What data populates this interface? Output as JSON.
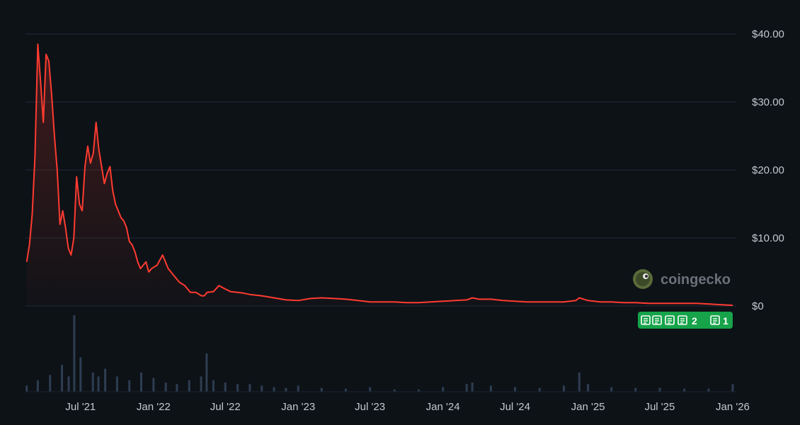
{
  "chart_data": {
    "type": "area",
    "title": "",
    "xlabel": "",
    "ylabel": "",
    "ylim": [
      0,
      40
    ],
    "y_ticks": [
      "$40.00",
      "$30.00",
      "$20.00",
      "$10.00",
      "$0"
    ],
    "y_tick_values": [
      40,
      30,
      20,
      10,
      0
    ],
    "x_ticks": [
      "Jul '21",
      "Jan '22",
      "Jul '22",
      "Jan '23",
      "Jul '23",
      "Jan '24",
      "Jul '24",
      "Jan '25",
      "Jul '25",
      "Jan '26"
    ],
    "x_tick_dates": [
      "2021-07-01",
      "2022-01-01",
      "2022-07-01",
      "2023-01-01",
      "2023-07-01",
      "2024-01-01",
      "2024-07-01",
      "2025-01-01",
      "2025-07-01",
      "2026-01-01"
    ],
    "grid": true,
    "line_color": "#ff3b30",
    "series": [
      {
        "x": [
          "2021-02-15",
          "2021-02-22",
          "2021-03-01",
          "2021-03-08",
          "2021-03-15",
          "2021-03-22",
          "2021-03-29",
          "2021-04-05",
          "2021-04-12",
          "2021-04-19",
          "2021-04-26",
          "2021-05-03",
          "2021-05-10",
          "2021-05-17",
          "2021-05-24",
          "2021-05-31",
          "2021-06-07",
          "2021-06-14",
          "2021-06-21",
          "2021-06-28",
          "2021-07-05",
          "2021-07-12",
          "2021-07-19",
          "2021-07-26",
          "2021-08-02",
          "2021-08-09",
          "2021-08-16",
          "2021-08-23",
          "2021-08-30",
          "2021-09-06",
          "2021-09-13",
          "2021-09-20",
          "2021-09-27",
          "2021-10-04",
          "2021-10-11",
          "2021-10-18",
          "2021-10-25",
          "2021-11-01",
          "2021-11-08",
          "2021-11-15",
          "2021-11-22",
          "2021-11-29",
          "2021-12-06",
          "2021-12-13",
          "2021-12-20",
          "2021-12-27",
          "2022-01-10",
          "2022-01-24",
          "2022-02-07",
          "2022-02-21",
          "2022-03-07",
          "2022-03-21",
          "2022-04-04",
          "2022-04-18",
          "2022-05-02",
          "2022-05-09",
          "2022-05-16",
          "2022-06-01",
          "2022-06-15",
          "2022-07-01",
          "2022-07-15",
          "2022-08-01",
          "2022-08-15",
          "2022-09-01",
          "2022-10-01",
          "2022-11-01",
          "2022-12-01",
          "2023-01-01",
          "2023-02-01",
          "2023-03-01",
          "2023-04-01",
          "2023-05-01",
          "2023-06-01",
          "2023-07-01",
          "2023-08-01",
          "2023-09-01",
          "2023-10-01",
          "2023-11-01",
          "2023-12-01",
          "2024-01-01",
          "2024-02-01",
          "2024-03-01",
          "2024-03-15",
          "2024-04-01",
          "2024-05-01",
          "2024-06-01",
          "2024-07-01",
          "2024-08-01",
          "2024-09-01",
          "2024-10-01",
          "2024-11-01",
          "2024-12-01",
          "2024-12-10",
          "2025-01-01",
          "2025-02-01",
          "2025-03-01",
          "2025-04-01",
          "2025-05-01",
          "2025-06-01",
          "2025-07-01",
          "2025-08-01",
          "2025-09-01",
          "2025-10-01",
          "2025-11-01",
          "2025-12-01",
          "2026-01-01"
        ],
        "values": [
          6.5,
          9.0,
          13.5,
          22.0,
          38.5,
          33.0,
          27.0,
          37.0,
          36.0,
          31.0,
          25.0,
          20.0,
          12.0,
          14.0,
          11.5,
          8.5,
          7.5,
          10.0,
          19.0,
          15.0,
          14.0,
          20.5,
          23.5,
          21.0,
          22.5,
          27.0,
          23.0,
          20.5,
          18.0,
          19.5,
          20.5,
          17.0,
          15.0,
          14.0,
          13.0,
          12.5,
          11.5,
          9.5,
          9.0,
          8.0,
          6.5,
          5.5,
          6.0,
          6.5,
          5.0,
          5.5,
          6.0,
          7.5,
          5.5,
          4.5,
          3.5,
          3.0,
          2.0,
          2.0,
          1.5,
          1.5,
          2.0,
          2.1,
          3.0,
          2.5,
          2.1,
          2.0,
          1.9,
          1.7,
          1.5,
          1.2,
          0.9,
          0.8,
          1.1,
          1.2,
          1.1,
          1.0,
          0.8,
          0.6,
          0.6,
          0.6,
          0.5,
          0.5,
          0.6,
          0.7,
          0.8,
          0.9,
          1.2,
          1.0,
          1.0,
          0.8,
          0.7,
          0.6,
          0.6,
          0.6,
          0.6,
          0.8,
          1.2,
          0.8,
          0.6,
          0.6,
          0.5,
          0.5,
          0.4,
          0.4,
          0.4,
          0.4,
          0.4,
          0.3,
          0.2,
          0.1
        ]
      }
    ],
    "volume": {
      "x": [
        "2021-02-15",
        "2021-03-15",
        "2021-04-15",
        "2021-05-15",
        "2021-06-01",
        "2021-06-15",
        "2021-07-01",
        "2021-08-01",
        "2021-08-15",
        "2021-09-01",
        "2021-10-01",
        "2021-11-01",
        "2021-12-01",
        "2022-01-01",
        "2022-02-01",
        "2022-03-01",
        "2022-04-01",
        "2022-05-01",
        "2022-05-15",
        "2022-06-01",
        "2022-07-01",
        "2022-08-01",
        "2022-09-01",
        "2022-10-01",
        "2022-11-01",
        "2022-12-01",
        "2023-01-01",
        "2023-03-01",
        "2023-05-01",
        "2023-07-01",
        "2023-09-01",
        "2023-11-01",
        "2024-01-01",
        "2024-03-01",
        "2024-03-15",
        "2024-05-01",
        "2024-07-01",
        "2024-09-01",
        "2024-11-01",
        "2024-12-10",
        "2025-01-01",
        "2025-03-01",
        "2025-05-01",
        "2025-07-01",
        "2025-09-01",
        "2025-11-01",
        "2026-01-01"
      ],
      "values": [
        0.08,
        0.15,
        0.22,
        0.35,
        0.2,
        1.0,
        0.45,
        0.25,
        0.2,
        0.3,
        0.2,
        0.15,
        0.25,
        0.18,
        0.12,
        0.1,
        0.15,
        0.2,
        0.5,
        0.15,
        0.12,
        0.1,
        0.1,
        0.08,
        0.06,
        0.05,
        0.08,
        0.05,
        0.04,
        0.06,
        0.03,
        0.03,
        0.06,
        0.1,
        0.12,
        0.08,
        0.06,
        0.05,
        0.08,
        0.25,
        0.1,
        0.06,
        0.05,
        0.05,
        0.04,
        0.04,
        0.1
      ]
    }
  },
  "watermark": {
    "text": "coingecko",
    "icon": "gecko-logo-icon"
  },
  "news_badge": {
    "labels": [
      "2",
      "1"
    ],
    "icon": "newspaper-icon",
    "color": "#16a34a"
  }
}
